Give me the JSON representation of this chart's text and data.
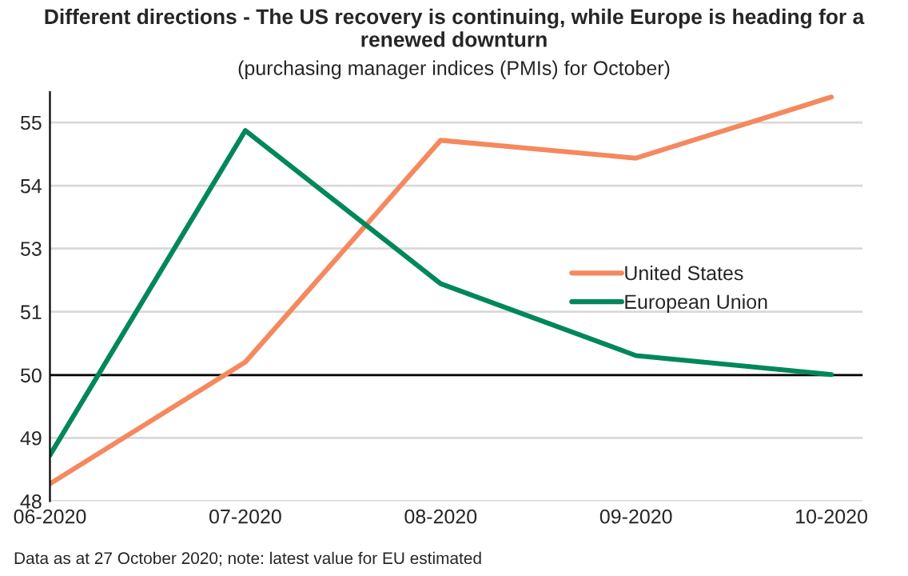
{
  "chart_data": {
    "type": "line",
    "title": "Different directions - The US recovery is continuing, while Europe is heading for a renewed downturn",
    "subtitle": "(purchasing manager indices (PMIs) for October)",
    "categories": [
      "06-2020",
      "07-2020",
      "08-2020",
      "09-2020",
      "10-2020"
    ],
    "series": [
      {
        "name": "United States",
        "color": "#f4895f",
        "values": [
          48.32,
          50.57,
          54.67,
          54.34,
          55.47
        ]
      },
      {
        "name": "European Union",
        "color": "#00875a",
        "values": [
          48.85,
          54.85,
          52.02,
          50.69,
          50.34
        ]
      }
    ],
    "ylim": [
      48,
      55.56
    ],
    "yticks": [
      48,
      {
        "value": 49.17,
        "label": "49"
      },
      {
        "value": 50.33,
        "label": "50"
      },
      {
        "value": 51.5,
        "label": "51"
      },
      {
        "value": 52.67,
        "label": "53"
      },
      {
        "value": 53.83,
        "label": "54"
      },
      55
    ],
    "ref_lines": [
      {
        "axis": "y",
        "value": 50.33,
        "color": "#000000"
      }
    ],
    "grid": "y",
    "legend": "right",
    "line_style": "solid",
    "marker": "none",
    "annotations": [
      "Data as at 27 October 2020; note: latest value for EU estimated"
    ]
  }
}
